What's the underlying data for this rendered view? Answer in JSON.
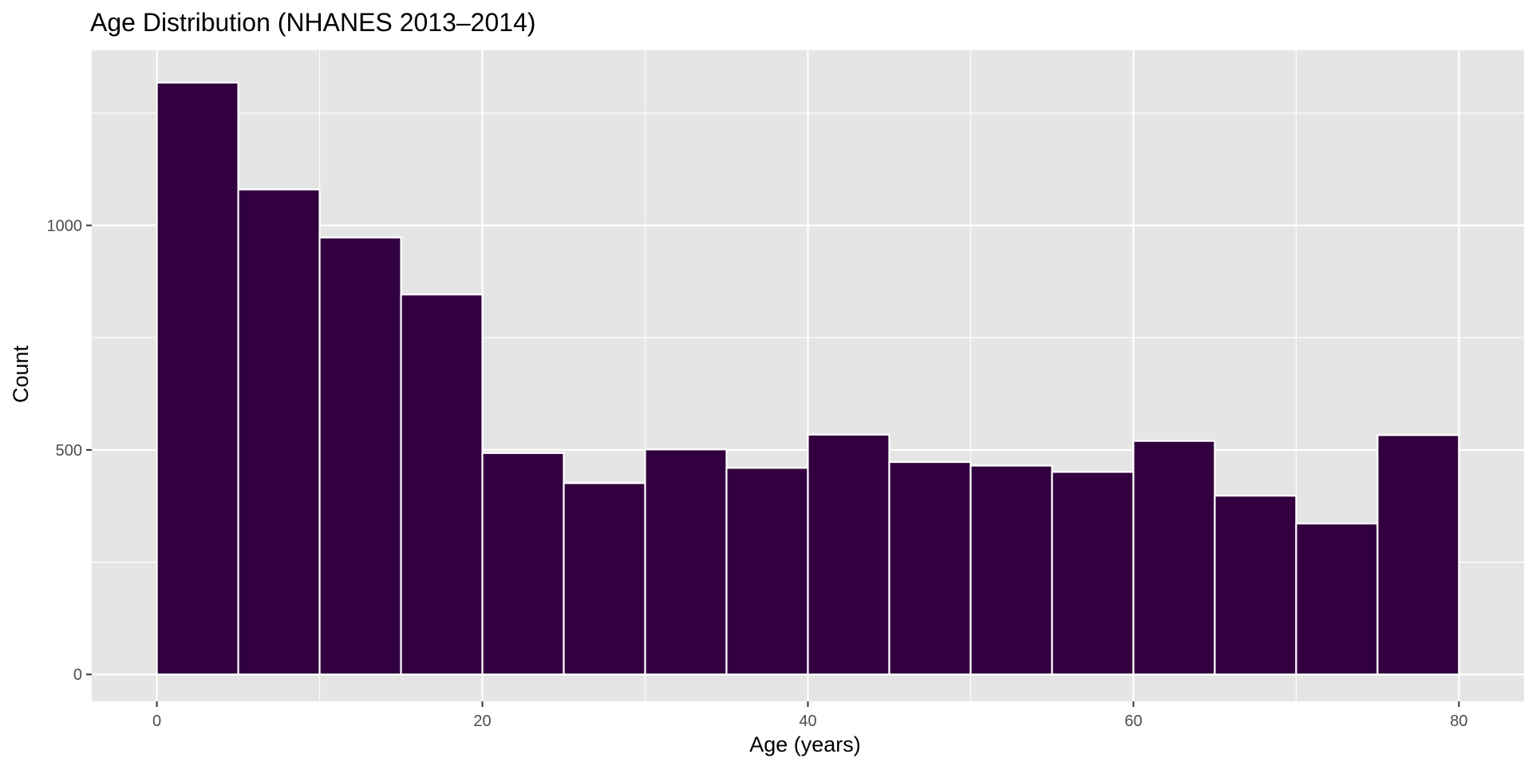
{
  "chart_data": {
    "type": "bar",
    "title": "Age Distribution (NHANES 2013–2014)",
    "xlabel": "Age (years)",
    "ylabel": "Count",
    "bin_edges": [
      0,
      5,
      10,
      15,
      20,
      25,
      30,
      35,
      40,
      45,
      50,
      55,
      60,
      65,
      70,
      75,
      80
    ],
    "values": [
      1318,
      1080,
      973,
      846,
      493,
      426,
      501,
      460,
      534,
      473,
      465,
      451,
      520,
      398,
      336,
      533
    ],
    "xlim": [
      -4,
      84
    ],
    "ylim": [
      -60,
      1390
    ],
    "x_ticks": [
      0,
      20,
      40,
      60,
      80
    ],
    "x_tick_labels": [
      "0",
      "20",
      "40",
      "60",
      "80"
    ],
    "y_ticks": [
      0,
      500,
      1000
    ],
    "y_tick_labels": [
      "0",
      "500",
      "1000"
    ],
    "x_minor_ticks": [
      10,
      30,
      50,
      70
    ],
    "y_minor_ticks": [
      250,
      750,
      1250
    ],
    "grid": true,
    "colors": {
      "bar_fill": "#33003f",
      "bar_outline": "#ffffff",
      "panel_background": "#e5e5e5",
      "grid": "#ffffff"
    }
  }
}
